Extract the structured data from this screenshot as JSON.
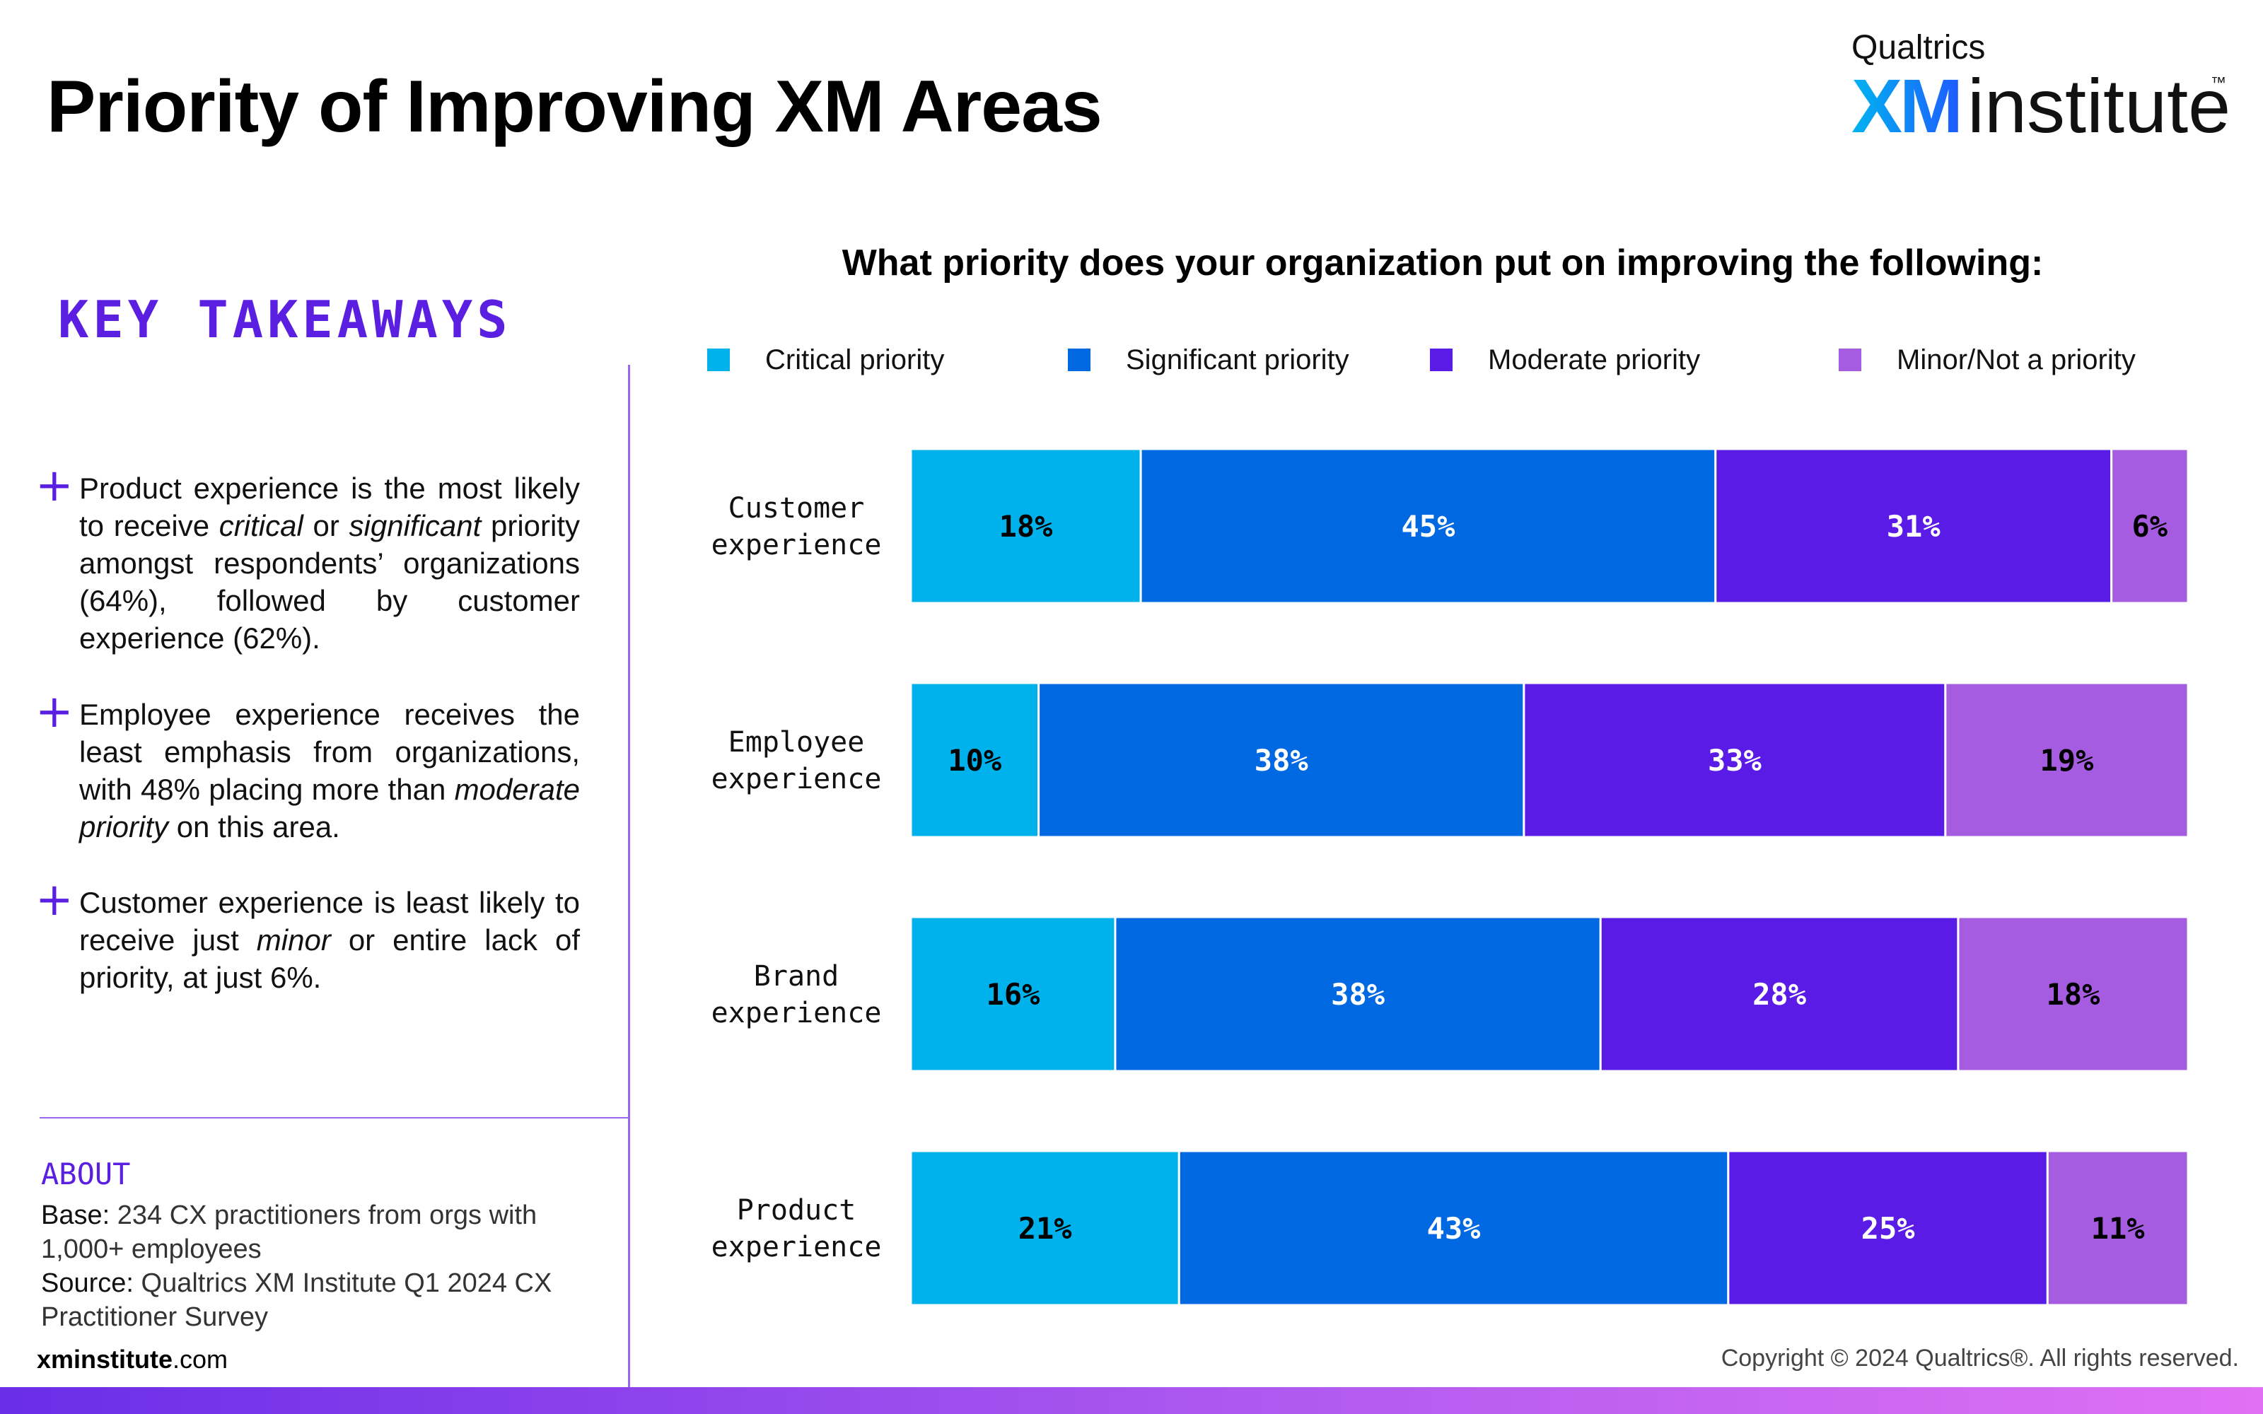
{
  "page": {
    "title": "Priority of Improving XM Areas",
    "logo": {
      "brand": "Qualtrics",
      "mark_xm": "XM",
      "mark_institute": "institute",
      "trademark": "™"
    }
  },
  "takeaways": {
    "heading": "KEY TAKEAWAYS",
    "bullet_icon": "plus-icon",
    "items": [
      {
        "parts": [
          {
            "t": "Product experience is the most likely to receive "
          },
          {
            "t": "critical",
            "i": true
          },
          {
            "t": " or "
          },
          {
            "t": "significant",
            "i": true
          },
          {
            "t": " priority amongst respondents’ organizations (64%), followed by customer experience (62%)."
          }
        ]
      },
      {
        "parts": [
          {
            "t": "Employee experience receives the least emphasis from organizations, with 48% placing more than "
          },
          {
            "t": "moderate priority",
            "i": true
          },
          {
            "t": " on this area."
          }
        ]
      },
      {
        "parts": [
          {
            "t": "Customer experience is least likely to receive just "
          },
          {
            "t": "minor",
            "i": true
          },
          {
            "t": " or entire lack of priority, at just 6%."
          }
        ]
      }
    ]
  },
  "about": {
    "title": "ABOUT",
    "base_label": "Base:",
    "base_text": " 234 CX practitioners from orgs with 1,000+ employees",
    "source_label": "Source:",
    "source_text": " Qualtrics XM Institute Q1 2024 CX Practitioner Survey"
  },
  "footer": {
    "site_bold": "xminstitute",
    "site_rest": ".com",
    "copyright": "Copyright © 2024 Qualtrics®. All rights reserved."
  },
  "chart_data": {
    "type": "bar",
    "orientation": "horizontal",
    "stacked": true,
    "title": "What priority does your organization put on improving the following:",
    "legend_position": "top",
    "xlim": [
      0,
      100
    ],
    "categories": [
      [
        "Customer",
        "experience"
      ],
      [
        "Employee",
        "experience"
      ],
      [
        "Brand",
        "experience"
      ],
      [
        "Product",
        "experience"
      ]
    ],
    "series": [
      {
        "name": "Critical priority",
        "color": "#00b2ec",
        "label_color": "#000000",
        "values": [
          18,
          10,
          16,
          21
        ]
      },
      {
        "name": "Significant priority",
        "color": "#0068e0",
        "label_color": "#ffffff",
        "values": [
          45,
          38,
          38,
          43
        ]
      },
      {
        "name": "Moderate priority",
        "color": "#5b1be6",
        "label_color": "#ffffff",
        "values": [
          31,
          33,
          28,
          25
        ]
      },
      {
        "name": "Minor/Not a priority",
        "color": "#a65ce0",
        "label_color": "#000000",
        "values": [
          6,
          19,
          18,
          11
        ]
      }
    ],
    "value_suffix": "%"
  }
}
